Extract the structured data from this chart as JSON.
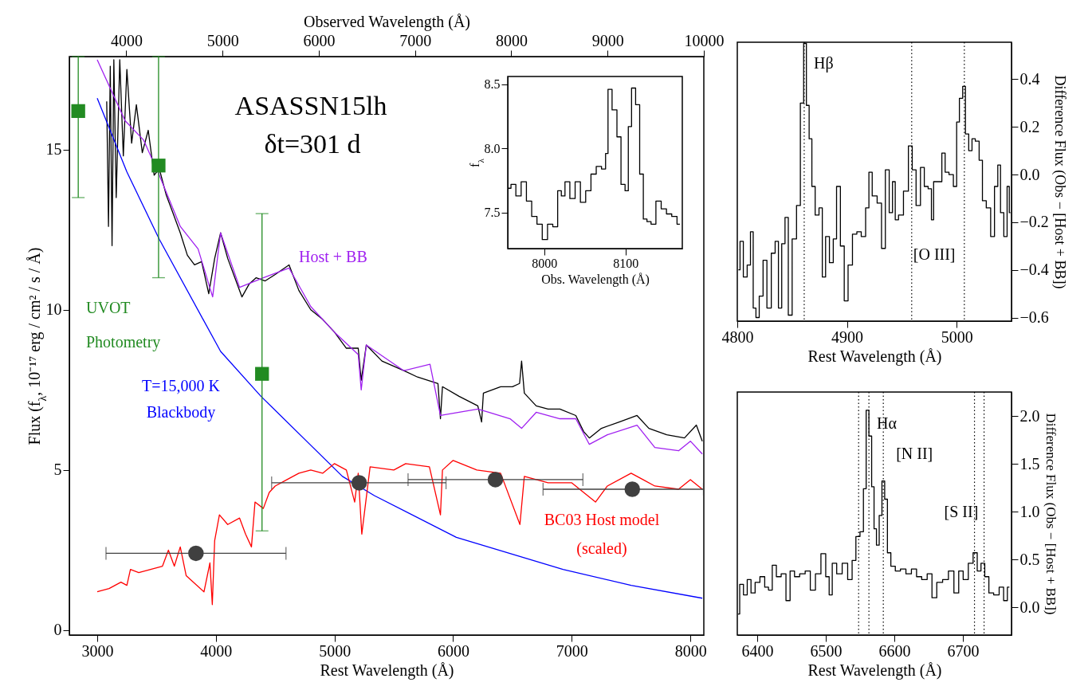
{
  "chart_data": [
    {
      "type": "line",
      "xlabel": "Rest Wavelength (Å)",
      "ylabel": "Flux (f$_{λ}$, 10⁻¹⁷ erg / cm² / s / Å)",
      "x2label": "Observed Wavelength (Å)",
      "xlim": [
        2765,
        8113
      ],
      "xticks": [
        3000,
        4000,
        5000,
        6000,
        7000,
        8000
      ],
      "ylim": [
        -0.15,
        17.9
      ],
      "yticks": [
        0,
        5,
        10,
        15
      ],
      "x2lim": [
        3408,
        10000
      ],
      "x2ticks": [
        4000,
        5000,
        6000,
        7000,
        8000,
        9000,
        10000
      ],
      "annotations": [
        "ASASSN15lh",
        "δt=301 d"
      ],
      "series": [
        {
          "color": "#000000",
          "x": [
            3080,
            3095,
            3110,
            3125,
            3140,
            3160,
            3190,
            3220,
            3250,
            3290,
            3330,
            3380,
            3430,
            3480,
            3523,
            3580,
            3640,
            3700,
            3760,
            3820,
            3880,
            3940,
            3990,
            4040,
            4100,
            4160,
            4220,
            4280,
            4340,
            4416,
            4500,
            4617,
            4700,
            4800,
            4900,
            5000,
            5100,
            5200,
            5225,
            5268,
            5400,
            5584,
            5700,
            5872,
            5893,
            5910,
            6050,
            6208,
            6240,
            6255,
            6400,
            6500,
            6560,
            6577,
            6600,
            6700,
            6800,
            6900,
            7034,
            7100,
            7148,
            7250,
            7400,
            7550,
            7650,
            7800,
            7950,
            8050,
            8100
          ],
          "values": [
            16.5,
            12.6,
            17.6,
            12.0,
            17.8,
            13.5,
            17.8,
            14.8,
            17.5,
            15.2,
            16.4,
            14.9,
            15.6,
            14.2,
            14.4,
            13.6,
            13.0,
            12.4,
            11.7,
            11.4,
            11.5,
            10.5,
            11.6,
            12.4,
            11.6,
            11.0,
            10.4,
            10.8,
            11.0,
            10.9,
            11.1,
            11.4,
            10.6,
            10.0,
            9.7,
            9.3,
            8.8,
            8.8,
            7.8,
            8.9,
            8.4,
            8.1,
            7.9,
            7.7,
            6.6,
            7.6,
            7.3,
            7.0,
            6.5,
            7.4,
            7.6,
            7.6,
            7.7,
            8.4,
            7.4,
            7.0,
            6.9,
            6.9,
            6.7,
            6.2,
            6.0,
            6.3,
            6.5,
            6.7,
            6.3,
            6.1,
            6.0,
            6.4,
            5.9
          ]
        },
        {
          "name": "Host + BB",
          "color": "#a020f0",
          "x": [
            3000,
            3235,
            3390,
            3523,
            3700,
            3850,
            3940,
            3973,
            4040,
            4200,
            4400,
            4617,
            4800,
            5000,
            5200,
            5225,
            5268,
            5584,
            5805,
            5893,
            6208,
            6300,
            6480,
            6577,
            6700,
            6900,
            7034,
            7148,
            7300,
            7550,
            7700,
            7900,
            8000,
            8100
          ],
          "values": [
            17.8,
            15.9,
            15.3,
            14.2,
            12.6,
            11.9,
            10.8,
            10.4,
            12.4,
            10.7,
            11.0,
            11.3,
            10.1,
            9.3,
            8.6,
            7.5,
            8.9,
            8.1,
            8.3,
            6.7,
            6.9,
            6.8,
            6.6,
            6.3,
            6.8,
            6.6,
            6.6,
            5.8,
            6.1,
            6.4,
            5.7,
            5.6,
            5.9,
            5.5
          ]
        },
        {
          "name": "T=15,000 K\nBlackbody",
          "color": "#0000ff",
          "x": [
            3000,
            3250,
            3523,
            4040,
            4380,
            5067,
            5336,
            6027,
            6926,
            7500,
            8100
          ],
          "values": [
            16.6,
            14.3,
            12.2,
            8.7,
            7.3,
            4.8,
            4.2,
            2.9,
            1.9,
            1.4,
            1.0
          ]
        },
        {
          "name": "BC03 Host model\n(scaled)",
          "color": "#ff0000",
          "x": [
            3000,
            3100,
            3200,
            3250,
            3280,
            3350,
            3450,
            3550,
            3600,
            3650,
            3700,
            3750,
            3900,
            3950,
            3970,
            3990,
            4030,
            4100,
            4200,
            4250,
            4300,
            4330,
            4400,
            4450,
            4500,
            4600,
            4700,
            4800,
            4900,
            5000,
            5100,
            5170,
            5200,
            5230,
            5300,
            5500,
            5600,
            5800,
            5893,
            5910,
            6000,
            6200,
            6400,
            6563,
            6600,
            6800,
            7000,
            7100,
            7200,
            7300,
            7500,
            7600,
            7700,
            7900,
            8000,
            8100
          ],
          "values": [
            1.2,
            1.3,
            1.5,
            1.4,
            1.9,
            1.8,
            1.9,
            2.0,
            2.5,
            2.0,
            2.6,
            1.7,
            1.2,
            2.1,
            0.8,
            2.8,
            3.6,
            3.3,
            3.5,
            3.0,
            2.6,
            4.0,
            3.8,
            4.3,
            4.5,
            4.7,
            4.9,
            5.0,
            4.9,
            5.2,
            5.0,
            4.0,
            4.9,
            3.0,
            5.1,
            5.0,
            5.2,
            5.1,
            3.6,
            5.0,
            5.3,
            5.0,
            4.9,
            3.3,
            4.8,
            4.6,
            4.6,
            4.3,
            4.0,
            4.5,
            4.9,
            4.7,
            4.5,
            4.4,
            4.7,
            4.4
          ]
        },
        {
          "type": "scatter",
          "name": "UVOT\nPhotometry",
          "color": "#228b22",
          "marker": "square",
          "x": [
            2840,
            3517,
            4389
          ],
          "values": [
            16.2,
            14.5,
            8.0
          ],
          "errors": [
            [
              13.5,
              17.9
            ],
            [
              11.0,
              17.9
            ],
            [
              3.1,
              13.0
            ]
          ]
        },
        {
          "type": "scatter",
          "color": "#404040",
          "marker": "circle",
          "x": [
            3832,
            5208,
            6356,
            7510
          ],
          "values": [
            2.4,
            4.6,
            4.7,
            4.4
          ],
          "xerrors": [
            [
              3074,
              4591
            ],
            [
              4470,
              5940
            ],
            [
              5620,
              7094
            ],
            [
              6758,
              8110
            ]
          ]
        }
      ]
    },
    {
      "type": "step",
      "xlabel": "Obs. Wavelength (Å)",
      "ylabel": "f$_{λ}$",
      "xlim": [
        7955,
        8170
      ],
      "xticks": [
        8000,
        8100
      ],
      "ylim": [
        7.22,
        8.56
      ],
      "yticks": [
        {
          "value": 7.5,
          "label": "7.5"
        },
        {
          "value": 8,
          "label": "8.0"
        },
        {
          "value": 8.5,
          "label": "8.5"
        }
      ],
      "x": [
        7956,
        7962,
        7968,
        7975,
        7981,
        7988,
        7994,
        8001,
        8007,
        8014,
        8019,
        8023,
        8028,
        8035,
        8041,
        8048,
        8054,
        8061,
        8067,
        8074,
        8077,
        8080,
        8087,
        8092,
        8097,
        8102,
        8105,
        8110,
        8115,
        8120,
        8124,
        8129,
        8134,
        8141,
        8147,
        8154,
        8160,
        8167
      ],
      "series": [
        {
          "color": "#000000",
          "values": [
            7.69,
            7.72,
            7.63,
            7.74,
            7.59,
            7.47,
            7.41,
            7.29,
            7.41,
            7.39,
            7.67,
            7.63,
            7.74,
            7.61,
            7.74,
            7.58,
            7.67,
            7.8,
            7.86,
            7.84,
            7.96,
            8.46,
            8.3,
            8.09,
            7.72,
            7.67,
            8.17,
            8.47,
            8.34,
            7.8,
            7.45,
            7.43,
            7.41,
            7.59,
            7.53,
            7.49,
            7.47,
            7.41
          ]
        }
      ]
    },
    {
      "type": "step",
      "xlabel": "Rest Wavelength (Å)",
      "ylabel": "Difference Flux (Obs − [Host + BB])",
      "xlim": [
        4800,
        5050
      ],
      "xticks": [
        4800,
        4900,
        5000
      ],
      "ylim": [
        -0.615,
        0.555
      ],
      "yticks": [
        {
          "value": -0.6,
          "label": "−0.6"
        },
        {
          "value": -0.4,
          "label": "−0.4"
        },
        {
          "value": -0.2,
          "label": "−0.2"
        },
        {
          "value": 0,
          "label": "0.0"
        },
        {
          "value": 0.2,
          "label": "0.2"
        },
        {
          "value": 0.4,
          "label": "0.4"
        }
      ],
      "ref_lines": [
        {
          "axis": "x",
          "value": 4861,
          "label": "Hβ",
          "line_style": "dotted"
        },
        {
          "axis": "x",
          "value": 4959,
          "label": "[O III]",
          "line_style": "dotted"
        },
        {
          "axis": "x",
          "value": 5007,
          "line_style": "dotted"
        }
      ],
      "x": [
        4801,
        4804,
        4807,
        4811,
        4813,
        4816,
        4818,
        4822,
        4825,
        4829,
        4833,
        4836,
        4839,
        4842,
        4845,
        4848,
        4852,
        4856,
        4859,
        4862,
        4864,
        4867,
        4869,
        4873,
        4876,
        4879,
        4882,
        4886,
        4889,
        4892,
        4896,
        4899,
        4903,
        4907,
        4911,
        4915,
        4919,
        4921,
        4925,
        4930,
        4933,
        4937,
        4940,
        4943,
        4945,
        4949,
        4954,
        4958,
        4961,
        4965,
        4969,
        4972,
        4976,
        4978,
        4980,
        4985,
        4988,
        4991,
        4995,
        4999,
        5001,
        5004,
        5007,
        5009,
        5013,
        5015,
        5019,
        5022,
        5025,
        5029,
        5033,
        5036,
        5039,
        5041,
        5045,
        5047,
        5049
      ],
      "series": [
        {
          "color": "#000000",
          "values": [
            -0.4,
            -0.28,
            -0.43,
            -0.38,
            -0.24,
            -0.56,
            -0.6,
            -0.51,
            -0.36,
            -0.56,
            -0.33,
            -0.28,
            -0.56,
            -0.29,
            -0.18,
            -0.59,
            -0.27,
            -0.13,
            0.3,
            0.55,
            0.29,
            0.15,
            -0.05,
            -0.17,
            -0.14,
            -0.43,
            -0.26,
            -0.37,
            -0.27,
            -0.05,
            -0.3,
            -0.53,
            -0.38,
            -0.25,
            -0.24,
            -0.26,
            -0.14,
            0.01,
            -0.09,
            -0.12,
            -0.31,
            0.02,
            -0.16,
            -0.03,
            -0.19,
            -0.17,
            -0.07,
            0.12,
            0.02,
            -0.13,
            0.03,
            -0.05,
            -0.06,
            -0.19,
            -0.03,
            -0.03,
            0.09,
            0.01,
            0.0,
            -0.05,
            0.22,
            0.32,
            0.37,
            0.17,
            0.1,
            0.15,
            0.14,
            0.06,
            -0.11,
            -0.14,
            -0.26,
            -0.05,
            0.04,
            -0.16,
            -0.26,
            -0.05,
            -0.16
          ]
        }
      ]
    },
    {
      "type": "step",
      "xlabel": "Rest Wavelength (Å)",
      "ylabel": "Difference Flux (Obs − [Host + BB])",
      "xlim": [
        6371,
        6771
      ],
      "xticks": [
        6400,
        6500,
        6600,
        6700
      ],
      "ylim": [
        -0.29,
        2.25
      ],
      "yticks": [
        {
          "value": 0,
          "label": "0.0"
        },
        {
          "value": 0.5,
          "label": "0.5"
        },
        {
          "value": 1,
          "label": "1.0"
        },
        {
          "value": 1.5,
          "label": "1.5"
        },
        {
          "value": 2,
          "label": "2.0"
        }
      ],
      "ref_lines": [
        {
          "axis": "x",
          "value": 6548,
          "line_style": "dotted"
        },
        {
          "axis": "x",
          "value": 6563,
          "label": "Hα",
          "line_style": "dotted"
        },
        {
          "axis": "x",
          "value": 6584,
          "label": "[N II]",
          "line_style": "dotted"
        },
        {
          "axis": "x",
          "value": 6717,
          "label": "[S II]",
          "line_style": "dotted"
        },
        {
          "axis": "x",
          "value": 6731,
          "line_style": "dotted"
        }
      ],
      "x": [
        6372,
        6377,
        6383,
        6388,
        6394,
        6400,
        6408,
        6414,
        6419,
        6425,
        6431,
        6439,
        6445,
        6451,
        6458,
        6466,
        6474,
        6481,
        6489,
        6497,
        6503,
        6507,
        6512,
        6520,
        6528,
        6536,
        6541,
        6547,
        6553,
        6557,
        6561,
        6565,
        6569,
        6572,
        6576,
        6580,
        6584,
        6588,
        6592,
        6598,
        6605,
        6613,
        6621,
        6629,
        6636,
        6644,
        6652,
        6658,
        6666,
        6675,
        6683,
        6691,
        6697,
        6704,
        6712,
        6718,
        6724,
        6729,
        6735,
        6741,
        6749,
        6757,
        6762,
        6768
      ],
      "series": [
        {
          "color": "#000000",
          "values": [
            -0.07,
            0.24,
            0.13,
            0.29,
            0.15,
            0.26,
            0.32,
            0.21,
            0.18,
            0.44,
            0.32,
            0.35,
            0.07,
            0.38,
            0.32,
            0.35,
            0.38,
            0.18,
            0.35,
            0.56,
            0.32,
            0.13,
            0.46,
            0.35,
            0.46,
            0.29,
            0.49,
            0.74,
            0.79,
            1.24,
            2.06,
            1.79,
            1.26,
            0.82,
            0.65,
            0.96,
            1.32,
            1.13,
            0.57,
            0.43,
            0.38,
            0.4,
            0.35,
            0.4,
            0.32,
            0.29,
            0.35,
            0.1,
            0.26,
            0.29,
            0.38,
            0.15,
            0.38,
            0.29,
            0.46,
            0.57,
            0.38,
            0.46,
            0.32,
            0.15,
            0.13,
            0.21,
            0.07,
            0.21
          ]
        }
      ]
    }
  ]
}
